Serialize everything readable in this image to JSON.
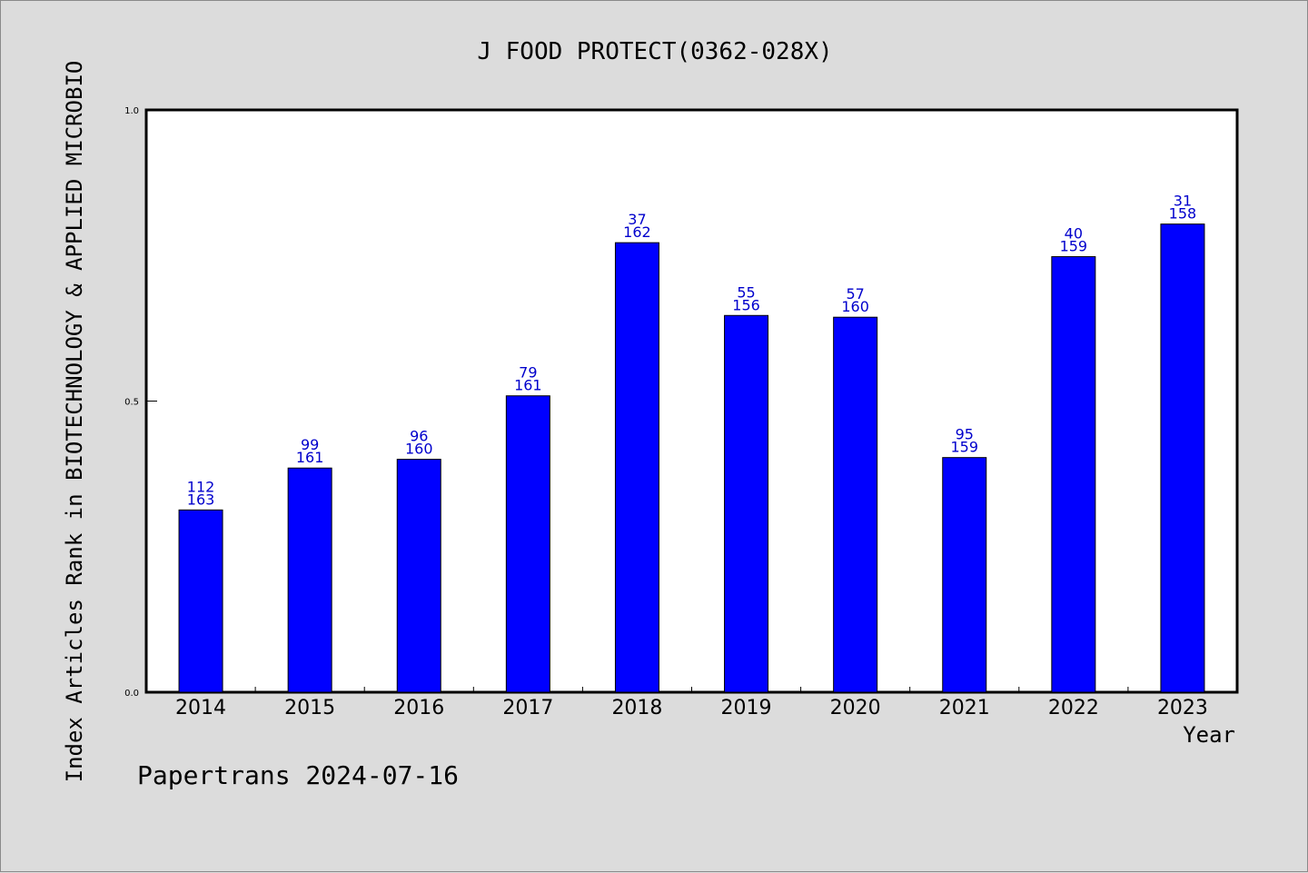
{
  "colors": {
    "background": "#dcdcdc",
    "plot_background": "#ffffff",
    "bar": "#0000ff",
    "data_label": "#0000cc",
    "axis": "#000000"
  },
  "footer": "Papertrans 2024-07-16",
  "chart_data": {
    "type": "bar",
    "title": "J FOOD PROTECT(0362-028X)",
    "xlabel": "Year",
    "ylabel": "Index Articles Rank in BIOTECHNOLOGY & APPLIED MICROBIO",
    "ylim": [
      0,
      1
    ],
    "yticks": [
      "0.0",
      "0.5",
      "1.0"
    ],
    "grid": false,
    "categories": [
      "2014",
      "2015",
      "2016",
      "2017",
      "2018",
      "2019",
      "2020",
      "2021",
      "2022",
      "2023"
    ],
    "values": [
      0.313,
      0.385,
      0.4,
      0.509,
      0.772,
      0.647,
      0.644,
      0.403,
      0.748,
      0.804
    ],
    "ranks": [
      "112",
      "99",
      "96",
      "79",
      "37",
      "55",
      "57",
      "95",
      "40",
      "31"
    ],
    "totals": [
      "163",
      "161",
      "160",
      "161",
      "162",
      "156",
      "160",
      "159",
      "159",
      "158"
    ]
  }
}
